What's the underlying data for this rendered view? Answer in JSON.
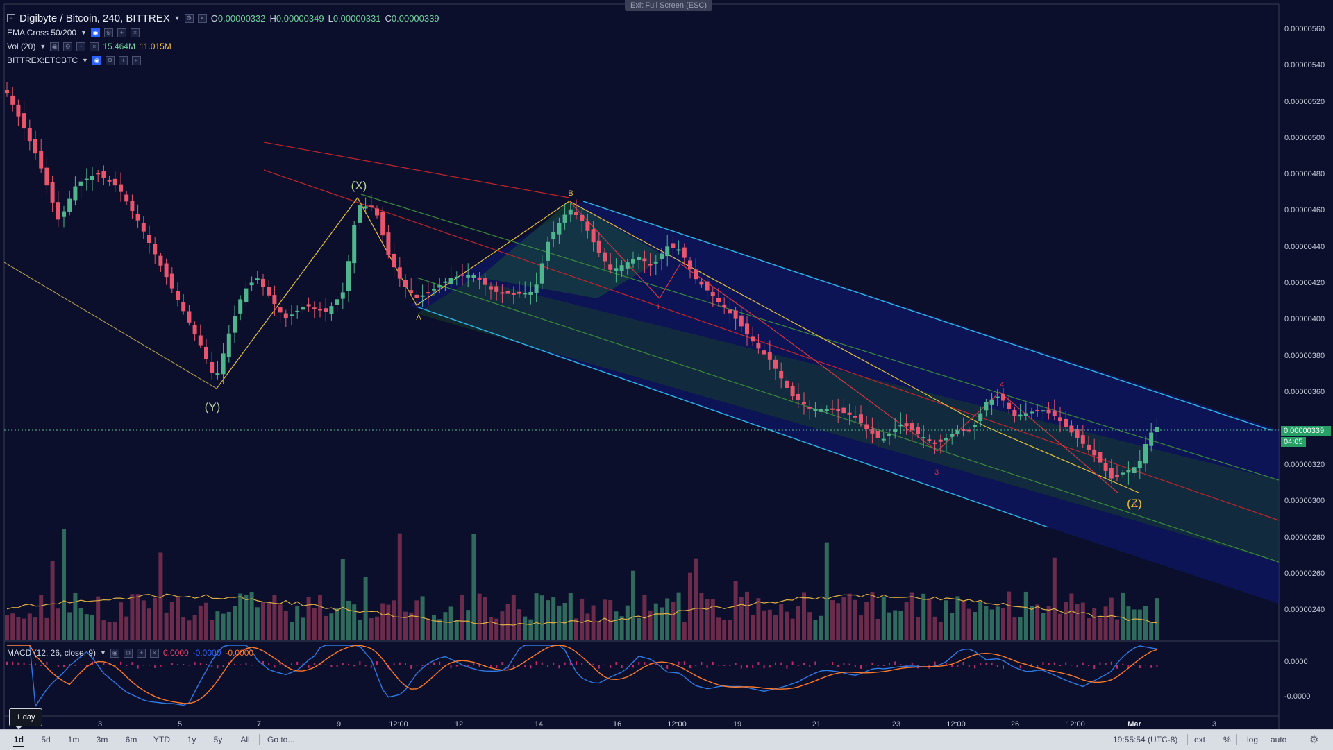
{
  "header": {
    "symbol": "Digibyte / Bitcoin, 240, BITTREX",
    "ohlc": [
      {
        "k": "O",
        "v": "0.00000332"
      },
      {
        "k": "H",
        "v": "0.00000349"
      },
      {
        "k": "L",
        "v": "0.00000331"
      },
      {
        "k": "C",
        "v": "0.00000339"
      }
    ],
    "exit_fullscreen": "Exit Full Screen (ESC)"
  },
  "indicators": {
    "ema": {
      "label": "EMA Cross 50/200"
    },
    "vol": {
      "label": "Vol (20)",
      "v1": "15.464M",
      "v2": "11.015M"
    },
    "compare": {
      "label": "BITTREX:ETCBTC"
    },
    "macd": {
      "label": "MACD (12, 26, close, 9)",
      "v1": "0.0000",
      "v2": "-0.0000",
      "v3": "-0.0000"
    }
  },
  "price_axis": {
    "labels": [
      "0.00000560",
      "0.00000540",
      "0.00000520",
      "0.00000500",
      "0.00000480",
      "0.00000460",
      "0.00000440",
      "0.00000420",
      "0.00000400",
      "0.00000380",
      "0.00000360",
      "0.00000320",
      "0.00000300",
      "0.00000280",
      "0.00000260",
      "0.00000240"
    ],
    "current_price": "0.00000339",
    "countdown": "04:05"
  },
  "macd_axis": {
    "labels": [
      "0.0000",
      "-0.0000"
    ]
  },
  "time_axis": {
    "labels": [
      "3",
      "5",
      "7",
      "9",
      "12:00",
      "12",
      "14",
      "16",
      "12:00",
      "19",
      "21",
      "23",
      "12:00",
      "26",
      "12:00",
      "Mar",
      "3"
    ]
  },
  "annotations": {
    "wave_x": "(X)",
    "wave_y": "(Y)",
    "wave_z": "(Z)",
    "point_a": "A",
    "point_b": "B",
    "w1": "1",
    "w3": "3",
    "w4": "4",
    "w5": "5"
  },
  "bottom_bar": {
    "tooltip": "1 day",
    "ranges": [
      "1d",
      "5d",
      "1m",
      "3m",
      "6m",
      "YTD",
      "1y",
      "5y",
      "All"
    ],
    "goto": "Go to...",
    "clock": "19:55:54 (UTC-8)",
    "ext": "ext",
    "pct": "%",
    "log": "log",
    "auto": "auto"
  },
  "colors": {
    "bg": "#0b0f2c",
    "up": "#4fb58c",
    "down": "#e8556d",
    "channel_blue": "#2bb6e8",
    "channel_green": "#3c8a3c",
    "median_red": "#c0262c",
    "fib_yellow": "#e6c13a"
  }
}
